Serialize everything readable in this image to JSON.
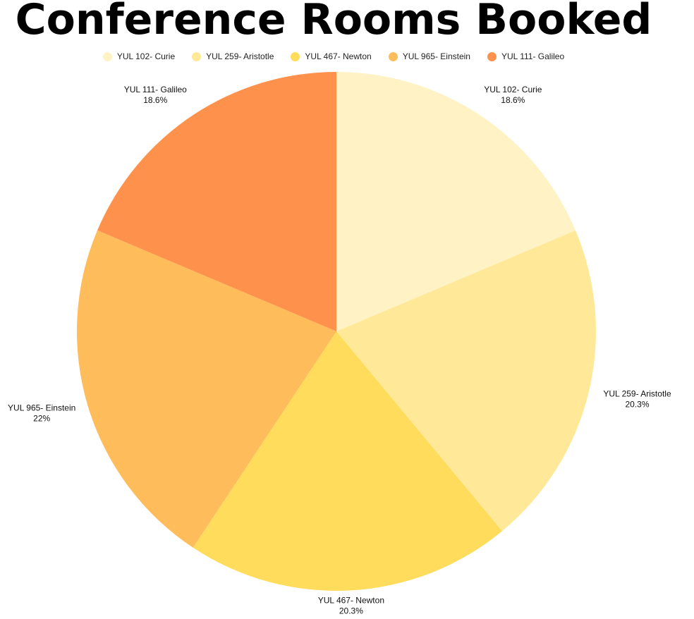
{
  "chart_data": {
    "type": "pie",
    "title": "Conference Rooms Booked",
    "legend_position": "top",
    "slices": [
      {
        "label": "YUL 102- Curie",
        "percent_label": "18.6%",
        "value": 18.6,
        "color": "#FFF2C4"
      },
      {
        "label": "YUL 259- Aristotle",
        "percent_label": "20.3%",
        "value": 20.3,
        "color": "#FFE999"
      },
      {
        "label": "YUL 467- Newton",
        "percent_label": "20.3%",
        "value": 20.3,
        "color": "#FFDC5C"
      },
      {
        "label": "YUL 965- Einstein",
        "percent_label": "22%",
        "value": 22,
        "color": "#FEBC5A"
      },
      {
        "label": "YUL 111- Galileo",
        "percent_label": "18.6%",
        "value": 18.6,
        "color": "#FE914B"
      }
    ]
  }
}
